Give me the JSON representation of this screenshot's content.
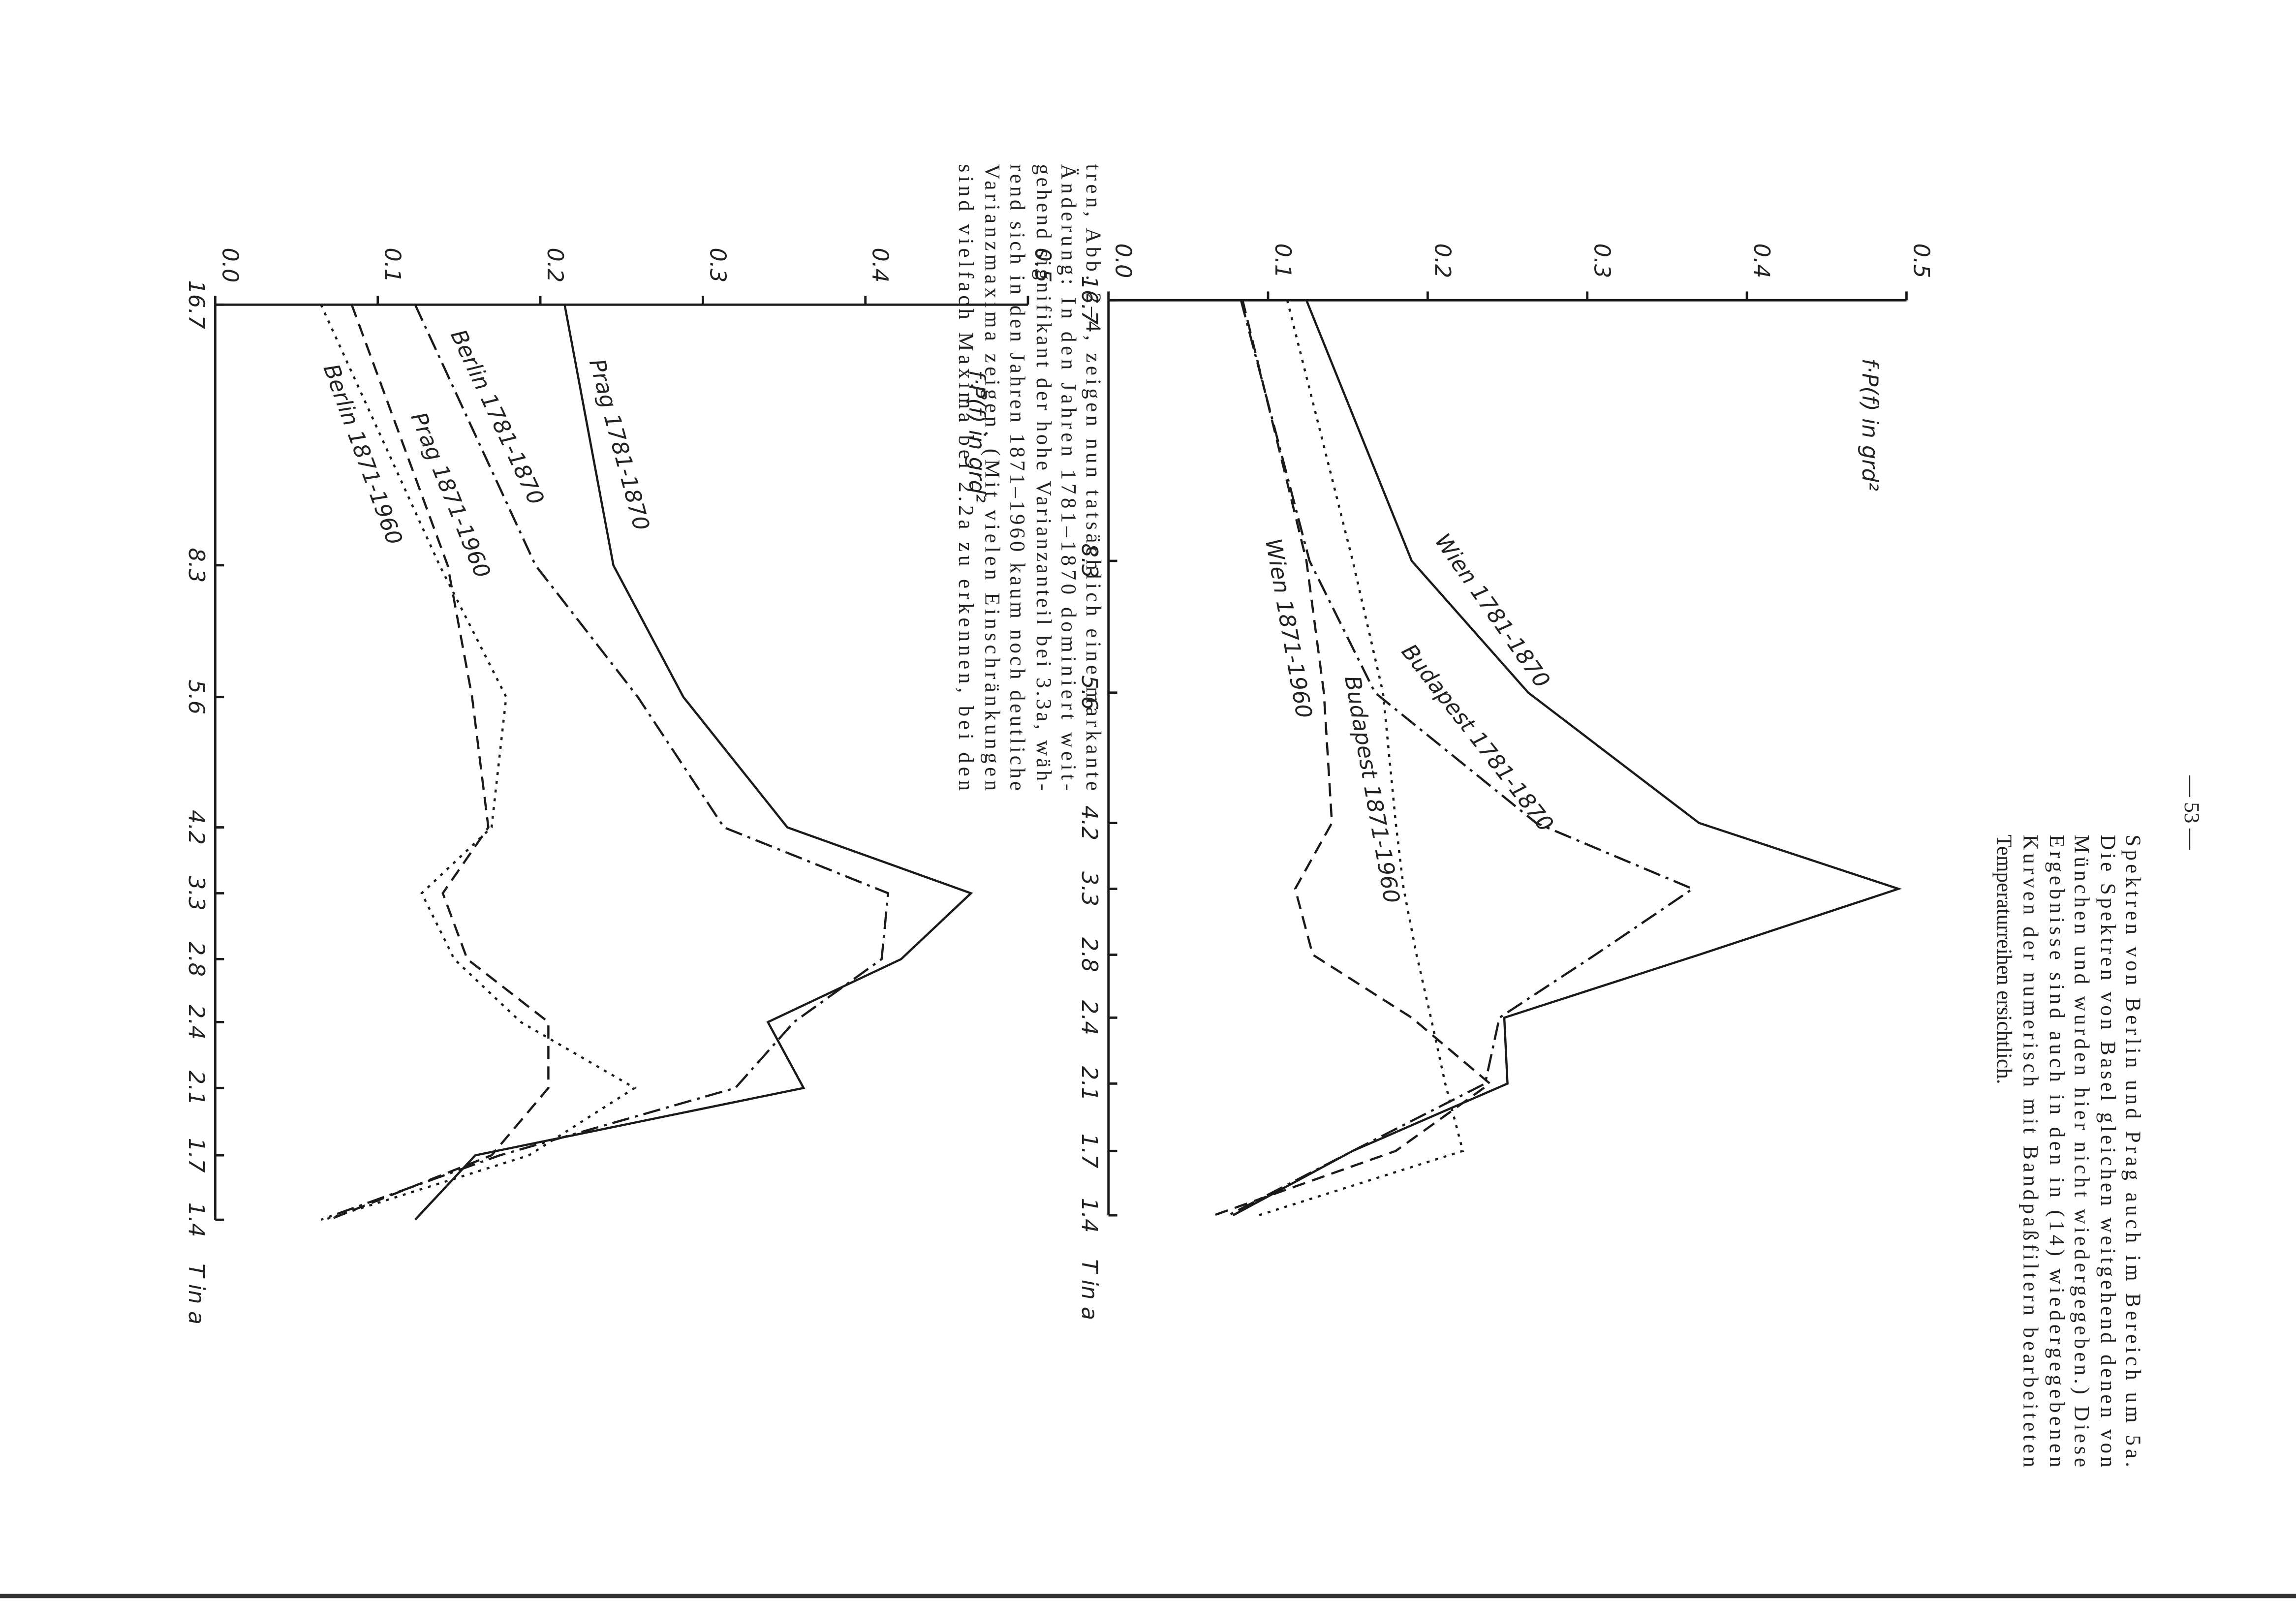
{
  "text": {
    "page_number": "— 53 —",
    "left_column": [
      "tren, Abb. 2–4, zeigen nun tatsächlich eine markante",
      "Änderung: In den Jahren 1781–1870 dominiert weit-",
      "gehend signifikant der hohe Varianzanteil bei 3.3a, wäh-",
      "rend sich in den Jahren 1871–1960 kaum noch deutliche",
      "Varianzmaxima zeigen. (Mit vielen Einschränkungen",
      "sind vielfach Maxima bei 2.2a zu erkennen, bei den"
    ],
    "right_column": [
      "Spektren von Berlin und Prag auch im Bereich um 5a.",
      "Die Spektren von Basel gleichen weitgehend denen von",
      "München und wurden hier nicht wiedergegeben.) Diese",
      "Ergebnisse sind auch in den in (14) wiedergegebenen",
      "Kurven der numerisch mit Bandpaßfiltern bearbeiteten",
      "Temperaturreihen ersichtlich."
    ]
  },
  "chart_data": [
    {
      "type": "line",
      "ylabel": "f·P(f) in grd²",
      "xlabel": "T in a",
      "categories": [
        "16.7",
        "8.3",
        "5.6",
        "4.2",
        "3.3",
        "2.8",
        "2.4",
        "2.1",
        "1.7",
        "1.4"
      ],
      "ylim": [
        0,
        0.5
      ],
      "yticks": [
        {
          "value": 0,
          "label": "0.0"
        },
        0.1,
        0.2,
        0.3,
        0.4,
        0.5
      ],
      "series": [
        {
          "name": "Wien 1781-1870",
          "style": "solid",
          "color": "#1a1a1a",
          "values": [
            0.124,
            0.19,
            0.263,
            0.37,
            0.495,
            0.37,
            0.248,
            0.25,
            0.153,
            0.078
          ]
        },
        {
          "name": "Budapest 1781-1870",
          "style": "dashdot",
          "color": "#1a1a1a",
          "values": [
            0.083,
            0.126,
            0.167,
            0.268,
            0.366,
            0.305,
            0.245,
            0.236,
            0.153,
            0.075
          ]
        },
        {
          "name": "Wien 1871-1960",
          "style": "dashed",
          "color": "#1a1a1a",
          "values": [
            0.084,
            0.124,
            0.135,
            0.14,
            0.117,
            0.128,
            0.19,
            0.239,
            0.18,
            0.066
          ]
        },
        {
          "name": "Budapest 1871-1960",
          "style": "dotted",
          "color": "#1a1a1a",
          "values": [
            0.112,
            0.153,
            0.172,
            0.18,
            0.185,
            0.193,
            0.202,
            0.211,
            0.222,
            0.094
          ]
        }
      ]
    },
    {
      "type": "line",
      "ylabel": "f·P(f) in grd²",
      "xlabel": "T in a",
      "categories": [
        "16.7",
        "8.3",
        "5.6",
        "4.2",
        "3.3",
        "2.8",
        "2.4",
        "2.1",
        "1.7",
        "1.4"
      ],
      "ylim": [
        0,
        0.5
      ],
      "yticks": [
        {
          "value": 0,
          "label": "0.0"
        },
        0.1,
        0.2,
        0.3,
        0.4,
        0.5
      ],
      "series": [
        {
          "name": "Prag 1781-1870",
          "style": "solid",
          "color": "#1a1a1a",
          "values": [
            0.215,
            0.245,
            0.288,
            0.352,
            0.465,
            0.422,
            0.34,
            0.362,
            0.16,
            0.123
          ]
        },
        {
          "name": "Berlin 1781-1870",
          "style": "dashdot",
          "color": "#1a1a1a",
          "values": [
            0.123,
            0.197,
            0.26,
            0.313,
            0.414,
            0.41,
            0.356,
            0.32,
            0.175,
            0.065
          ]
        },
        {
          "name": "Prag 1871-1960",
          "style": "dashed",
          "color": "#1a1a1a",
          "values": [
            0.084,
            0.143,
            0.158,
            0.168,
            0.14,
            0.155,
            0.205,
            0.205,
            0.17,
            0.07
          ]
        },
        {
          "name": "Berlin 1871-1960",
          "style": "dotted",
          "color": "#1a1a1a",
          "values": [
            0.065,
            0.138,
            0.179,
            0.17,
            0.127,
            0.147,
            0.188,
            0.258,
            0.193,
            0.067
          ]
        }
      ]
    }
  ]
}
